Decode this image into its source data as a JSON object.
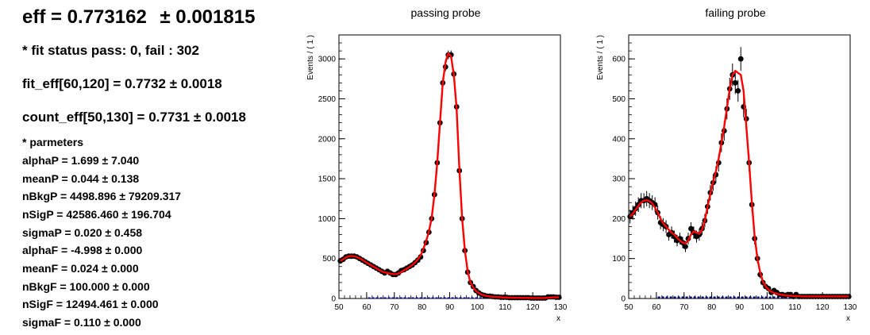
{
  "summary": {
    "eff_label": "eff = 0.773162",
    "eff_err": "± 0.001815",
    "fit_status": "* fit status pass: 0, fail : 302",
    "fit_eff": "fit_eff[60,120] = 0.7732 ± 0.0018",
    "count_eff": "count_eff[50,130] = 0.7731 ± 0.0018",
    "params_header": "* parmeters",
    "params": [
      "alphaP = 1.699 ± 7.040",
      "meanP = 0.044 ± 0.138",
      "nBkgP = 4498.896 ± 79209.317",
      "nSigP = 42586.460 ± 196.704",
      "sigmaP = 0.020 ± 0.458",
      "alphaF = -4.998 ± 0.000",
      "meanF = 0.024 ± 0.000",
      "nBkgF = 100.000 ± 0.000",
      "nSigF = 12494.461 ± 0.000",
      "sigmaF = 0.110 ± 0.000"
    ]
  },
  "chart_data": [
    {
      "type": "scatter",
      "title": "passing probe",
      "xlabel": "x",
      "ylabel": "Events / ( 1 )",
      "xlim": [
        50,
        130
      ],
      "ylim": [
        0,
        3300
      ],
      "xticks": [
        50,
        60,
        70,
        80,
        90,
        100,
        110,
        120,
        130
      ],
      "yticks": [
        0,
        500,
        1000,
        1500,
        2000,
        2500,
        3000
      ],
      "colors": {
        "data": "#000000",
        "fit": "#ff0000",
        "background": "#00008b"
      },
      "x": [
        50,
        51,
        52,
        53,
        54,
        55,
        56,
        57,
        58,
        59,
        60,
        61,
        62,
        63,
        64,
        65,
        66,
        67,
        68,
        69,
        70,
        71,
        72,
        73,
        74,
        75,
        76,
        77,
        78,
        79,
        80,
        81,
        82,
        83,
        84,
        85,
        86,
        87,
        88,
        89,
        90,
        91,
        92,
        93,
        94,
        95,
        96,
        97,
        98,
        99,
        100,
        101,
        102,
        103,
        104,
        105,
        106,
        107,
        108,
        109,
        110,
        111,
        112,
        113,
        114,
        115,
        116,
        117,
        118,
        119,
        120,
        121,
        122,
        123,
        124,
        125,
        126,
        127,
        128,
        129
      ],
      "y": [
        470,
        490,
        520,
        530,
        530,
        530,
        520,
        500,
        480,
        460,
        440,
        420,
        400,
        380,
        360,
        340,
        320,
        340,
        320,
        300,
        300,
        320,
        350,
        360,
        380,
        400,
        420,
        450,
        480,
        520,
        600,
        700,
        830,
        1000,
        1300,
        1700,
        2200,
        2700,
        2900,
        3050,
        3050,
        2810,
        2400,
        1600,
        1000,
        600,
        330,
        200,
        150,
        100,
        70,
        50,
        40,
        30,
        30,
        25,
        20,
        20,
        15,
        15,
        15,
        10,
        10,
        10,
        10,
        10,
        10,
        10,
        10,
        5,
        5,
        5,
        5,
        5,
        5,
        20,
        20,
        20,
        15,
        15
      ],
      "fit": [
        470,
        490,
        515,
        528,
        532,
        528,
        518,
        503,
        482,
        460,
        438,
        418,
        398,
        378,
        358,
        340,
        326,
        320,
        312,
        306,
        304,
        312,
        330,
        352,
        372,
        396,
        420,
        450,
        490,
        540,
        620,
        720,
        840,
        1010,
        1300,
        1700,
        2200,
        2700,
        2960,
        3070,
        3030,
        2800,
        2380,
        1620,
        1000,
        600,
        340,
        200,
        140,
        95,
        68,
        50,
        38,
        30,
        26,
        22,
        19,
        17,
        15,
        13,
        12,
        11,
        10,
        9,
        9,
        8,
        8,
        7,
        7,
        7,
        6,
        6,
        6,
        6,
        6,
        10,
        12,
        14,
        15,
        16
      ],
      "background": [
        0,
        0,
        0,
        0,
        0,
        0,
        0,
        0,
        0,
        0,
        5,
        5,
        5,
        5,
        5,
        5,
        5,
        5,
        5,
        5,
        5,
        5,
        5,
        5,
        5,
        5,
        5,
        5,
        5,
        5,
        5,
        5,
        5,
        5,
        5,
        5,
        5,
        5,
        5,
        5,
        5,
        5,
        5,
        5,
        5,
        5,
        5,
        5,
        5,
        5,
        5,
        5,
        5,
        5,
        5,
        5,
        5,
        5,
        5,
        5,
        5,
        5,
        5,
        5,
        5,
        5,
        5,
        5,
        5,
        5,
        5,
        0,
        0,
        0,
        0,
        0,
        0,
        0,
        0,
        0
      ]
    },
    {
      "type": "scatter",
      "title": "failing probe",
      "xlabel": "x",
      "ylabel": "Events / ( 1 )",
      "xlim": [
        50,
        130
      ],
      "ylim": [
        0,
        660
      ],
      "xticks": [
        50,
        60,
        70,
        80,
        90,
        100,
        110,
        120,
        130
      ],
      "yticks": [
        0,
        100,
        200,
        300,
        400,
        500,
        600
      ],
      "colors": {
        "data": "#000000",
        "fit": "#ff0000",
        "background": "#00008b"
      },
      "x": [
        50,
        51,
        52,
        53,
        54,
        55,
        56,
        57,
        58,
        59,
        60,
        61,
        62,
        63,
        64,
        65,
        66,
        67,
        68,
        69,
        70,
        71,
        72,
        73,
        74,
        75,
        76,
        77,
        78,
        79,
        80,
        81,
        82,
        83,
        84,
        85,
        86,
        87,
        88,
        89,
        90,
        91,
        92,
        93,
        94,
        95,
        96,
        97,
        98,
        99,
        100,
        101,
        102,
        103,
        104,
        105,
        106,
        107,
        108,
        109,
        110,
        111,
        112,
        113,
        114,
        115,
        116,
        117,
        118,
        119,
        120,
        121,
        122,
        123,
        124,
        125,
        126,
        127,
        128,
        129
      ],
      "y": [
        205,
        215,
        225,
        235,
        245,
        245,
        250,
        245,
        240,
        235,
        215,
        190,
        185,
        180,
        160,
        165,
        155,
        145,
        150,
        140,
        130,
        150,
        175,
        165,
        155,
        160,
        175,
        195,
        230,
        265,
        290,
        310,
        340,
        390,
        420,
        475,
        525,
        560,
        540,
        520,
        600,
        480,
        450,
        340,
        235,
        150,
        100,
        60,
        40,
        30,
        25,
        15,
        20,
        15,
        10,
        10,
        8,
        10,
        10,
        5,
        10,
        5,
        5,
        5,
        5,
        5,
        5,
        5,
        5,
        5,
        5,
        5,
        5,
        5,
        5,
        5,
        5,
        5,
        5,
        5
      ],
      "fit": [
        205,
        212,
        222,
        232,
        240,
        245,
        246,
        244,
        238,
        228,
        215,
        200,
        188,
        180,
        172,
        165,
        160,
        152,
        145,
        140,
        138,
        145,
        160,
        168,
        165,
        162,
        172,
        195,
        230,
        262,
        292,
        318,
        350,
        390,
        430,
        478,
        525,
        560,
        570,
        565,
        560,
        520,
        430,
        340,
        240,
        155,
        100,
        65,
        42,
        30,
        22,
        17,
        14,
        12,
        10,
        9,
        8,
        7,
        7,
        6,
        6,
        6,
        5,
        5,
        5,
        5,
        5,
        5,
        5,
        5,
        5,
        5,
        5,
        5,
        5,
        5,
        5,
        5,
        5,
        5
      ],
      "background": [
        0,
        0,
        0,
        0,
        0,
        0,
        0,
        0,
        0,
        0,
        3,
        3,
        3,
        3,
        3,
        3,
        3,
        3,
        3,
        3,
        3,
        3,
        3,
        3,
        3,
        3,
        3,
        3,
        3,
        3,
        3,
        3,
        3,
        3,
        3,
        3,
        3,
        3,
        3,
        3,
        3,
        3,
        3,
        3,
        3,
        3,
        3,
        3,
        3,
        3,
        3,
        3,
        3,
        3,
        3,
        3,
        3,
        3,
        3,
        3,
        3,
        3,
        3,
        3,
        3,
        3,
        3,
        3,
        3,
        3,
        3,
        0,
        0,
        0,
        0,
        0,
        0,
        0,
        0,
        0
      ]
    }
  ]
}
